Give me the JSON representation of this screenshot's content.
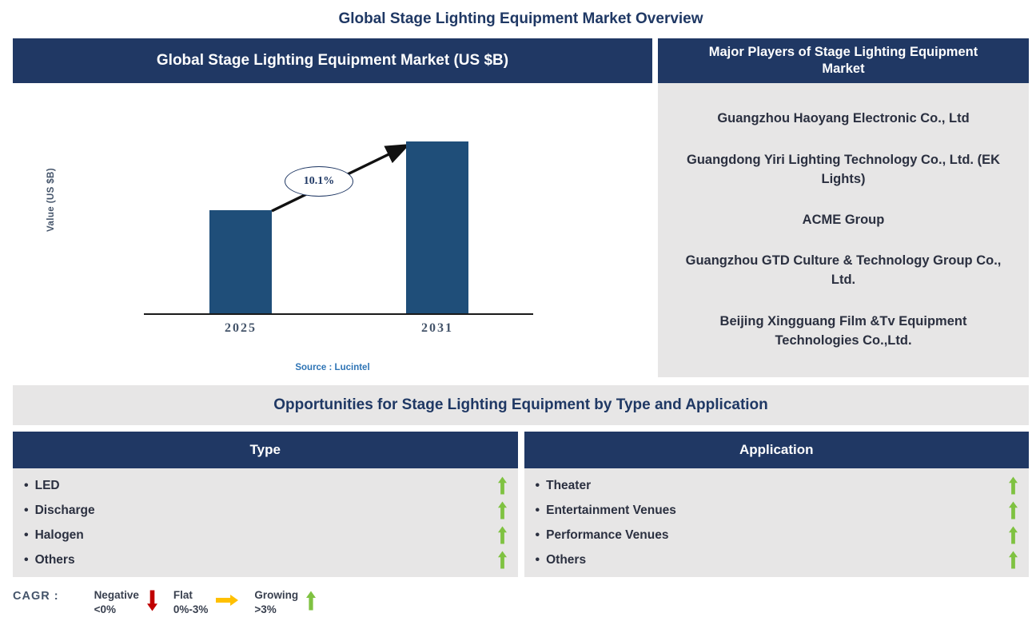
{
  "colors": {
    "navy": "#203864",
    "bar": "#1F4E79",
    "gray": "#E7E6E6",
    "title": "#1F3864",
    "text": "#2B3040",
    "axis": "#44546A",
    "source": "#2E74B5",
    "green": "#7FC241",
    "red": "#C00000",
    "yellow": "#FFC000"
  },
  "page_title": "Global Stage Lighting Equipment Market Overview",
  "chart_data": {
    "type": "bar",
    "title": "Global Stage Lighting Equipment Market (US $B)",
    "categories": [
      "2025",
      "2031"
    ],
    "values": [
      0.6,
      1.0
    ],
    "units": "relative height (y-axis unlabeled)",
    "ylabel": "Value (US $B)",
    "xlabel": "",
    "annotation": "10.1%",
    "annotation_meaning": "CAGR from 2025 to 2031",
    "source": "Source : Lucintel",
    "bar_color": "#1F4E79",
    "grid": false,
    "legend": "none"
  },
  "major_players": {
    "header": "Major Players of Stage Lighting Equipment Market",
    "items": [
      "Guangzhou Haoyang Electronic Co., Ltd",
      "Guangdong Yiri Lighting Technology Co., Ltd. (EK Lights)",
      "ACME Group",
      "Guangzhou GTD Culture & Technology Group Co., Ltd.",
      "Beijing Xingguang Film &Tv Equipment Technologies Co.,Ltd."
    ]
  },
  "opportunities": {
    "title": "Opportunities for Stage Lighting Equipment by Type and Application",
    "bullet": "•",
    "type_table": {
      "header": "Type",
      "rows": [
        {
          "label": "LED",
          "trend": "growing"
        },
        {
          "label": "Discharge",
          "trend": "growing"
        },
        {
          "label": "Halogen",
          "trend": "growing"
        },
        {
          "label": "Others",
          "trend": "growing"
        }
      ]
    },
    "application_table": {
      "header": "Application",
      "rows": [
        {
          "label": "Theater",
          "trend": "growing"
        },
        {
          "label": "Entertainment Venues",
          "trend": "growing"
        },
        {
          "label": "Performance Venues",
          "trend": "growing"
        },
        {
          "label": "Others",
          "trend": "growing"
        }
      ]
    }
  },
  "cagr_legend": {
    "label": "CAGR :",
    "items": [
      {
        "name": "Negative",
        "range": "<0%",
        "icon": "down-arrow",
        "color": "#C00000"
      },
      {
        "name": "Flat",
        "range": "0%-3%",
        "icon": "right-arrow",
        "color": "#FFC000"
      },
      {
        "name": "Growing",
        "range": ">3%",
        "icon": "up-arrow",
        "color": "#7FC241"
      }
    ]
  }
}
